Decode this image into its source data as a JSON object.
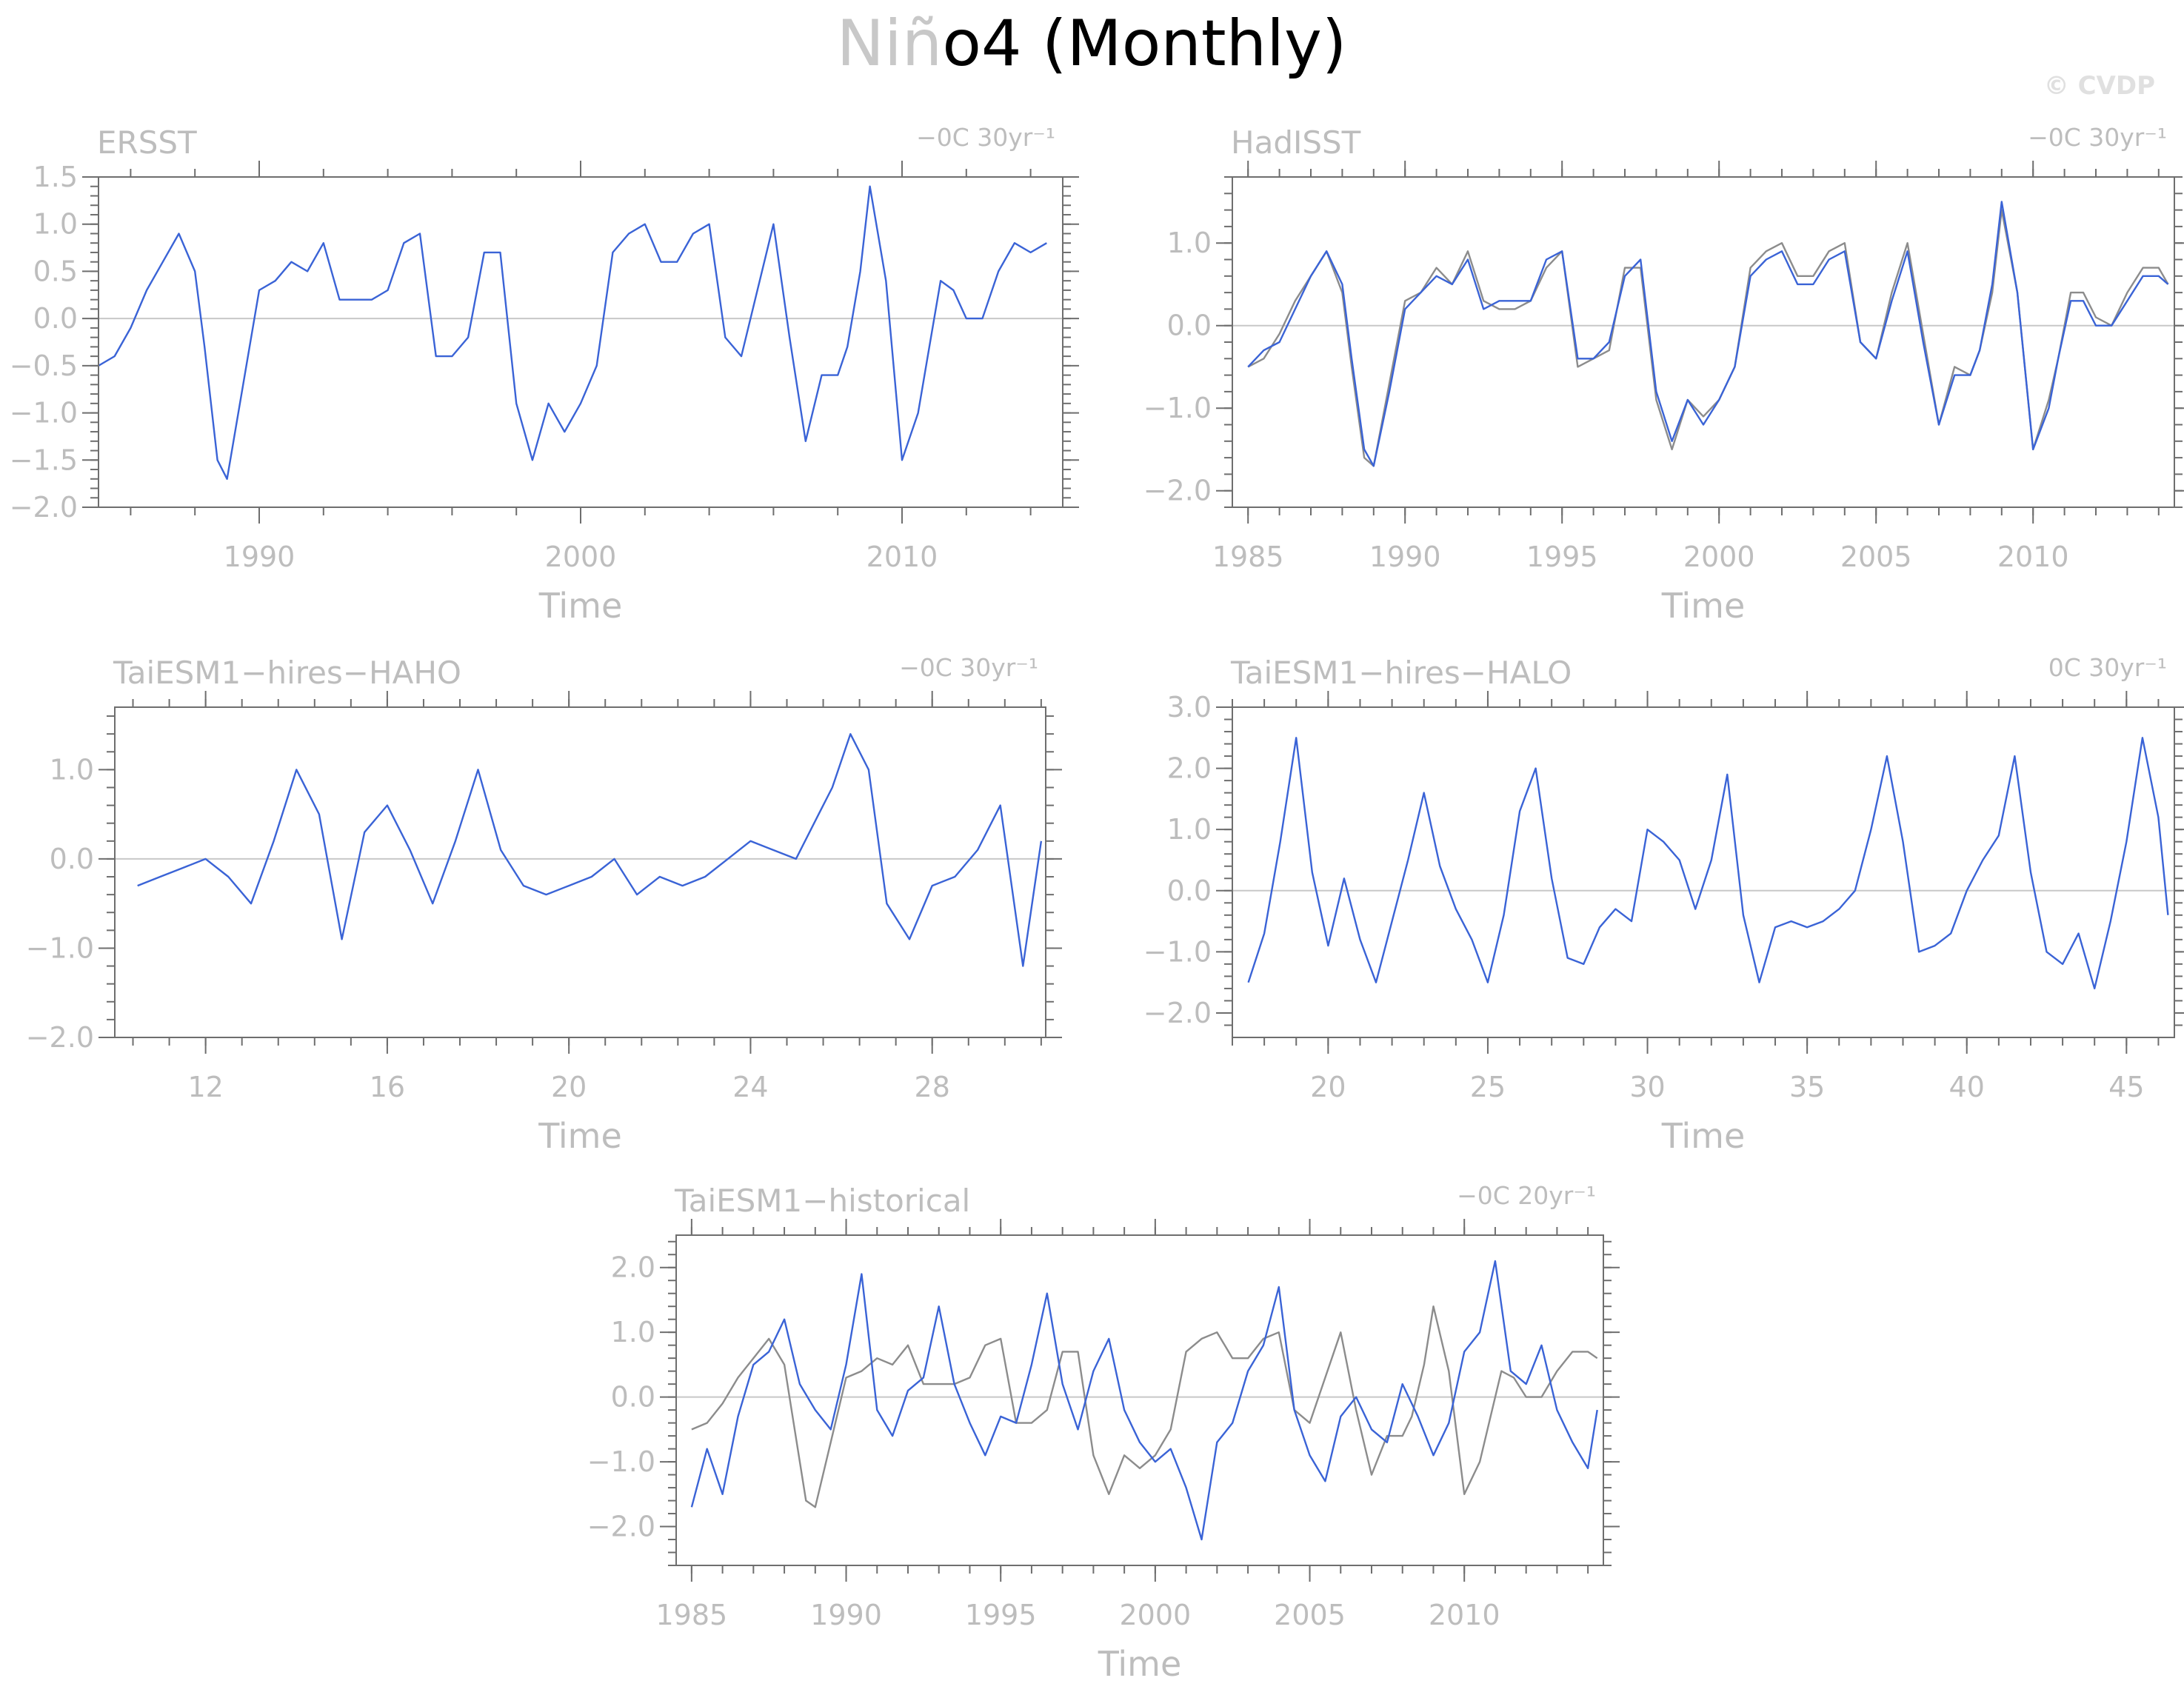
{
  "title": {
    "part_a": "Niñ",
    "part_b": "o4 (Monthly)"
  },
  "copyright": "© CVDP",
  "colors": {
    "model": "#3a63d6",
    "observed": "#8c8c8c",
    "text": "#bdbdbd",
    "frame": "#6e6e6e",
    "zero_line": "#c8c8c8"
  },
  "chart_data": [
    {
      "type": "line",
      "title": "ERSST",
      "trend_label": "−0C 30yr⁻¹",
      "xlabel": "Time",
      "xlim": [
        1985,
        2015
      ],
      "ylim": [
        -2.0,
        1.5
      ],
      "x_ticks": [
        1990,
        2000,
        2010
      ],
      "x_tick_labels": [
        "1990",
        "2000",
        "2010"
      ],
      "y_ticks": [
        -2.0,
        -1.5,
        -1.0,
        -0.5,
        0.0,
        0.5,
        1.0,
        1.5
      ],
      "y_tick_labels": [
        "−2.0",
        "−1.5",
        "−1.0",
        "−0.5",
        "0.0",
        "0.5",
        "1.0",
        "1.5"
      ],
      "series": [
        {
          "role": "model",
          "x": [
            1985,
            1985.5,
            1986,
            1986.5,
            1987,
            1987.5,
            1988,
            1988.3,
            1988.7,
            1989,
            1989.5,
            1990,
            1990.5,
            1991,
            1991.5,
            1992,
            1992.5,
            1993,
            1993.5,
            1994,
            1994.5,
            1995,
            1995.5,
            1996,
            1996.5,
            1997,
            1997.5,
            1998,
            1998.5,
            1999,
            1999.5,
            2000,
            2000.5,
            2001,
            2001.5,
            2002,
            2002.5,
            2003,
            2003.5,
            2004,
            2004.5,
            2005,
            2005.5,
            2006,
            2006.5,
            2007,
            2007.5,
            2008,
            2008.3,
            2008.7,
            2009,
            2009.5,
            2010,
            2010.5,
            2010.8,
            2011.2,
            2011.6,
            2012,
            2012.5,
            2013,
            2013.5,
            2014,
            2014.5
          ],
          "y": [
            -0.5,
            -0.4,
            -0.1,
            0.3,
            0.6,
            0.9,
            0.5,
            -0.3,
            -1.5,
            -1.7,
            -0.7,
            0.3,
            0.4,
            0.6,
            0.5,
            0.8,
            0.2,
            0.2,
            0.2,
            0.3,
            0.8,
            0.9,
            -0.4,
            -0.4,
            -0.2,
            0.7,
            0.7,
            -0.9,
            -1.5,
            -0.9,
            -1.2,
            -0.9,
            -0.5,
            0.7,
            0.9,
            1.0,
            0.6,
            0.6,
            0.9,
            1.0,
            -0.2,
            -0.4,
            0.3,
            1.0,
            -0.2,
            -1.3,
            -0.6,
            -0.6,
            -0.3,
            0.5,
            1.4,
            0.4,
            -1.5,
            -1.0,
            -0.4,
            0.4,
            0.3,
            0.0,
            0.0,
            0.5,
            0.8,
            0.7,
            0.8
          ]
        }
      ]
    },
    {
      "type": "line",
      "title": "HadISST",
      "trend_label": "−0C 30yr⁻¹",
      "xlabel": "Time",
      "xlim": [
        1984.5,
        2014.5
      ],
      "ylim": [
        -2.2,
        1.8
      ],
      "x_ticks": [
        1985,
        1990,
        1995,
        2000,
        2005,
        2010
      ],
      "x_tick_labels": [
        "1985",
        "1990",
        "1995",
        "2000",
        "2005",
        "2010"
      ],
      "y_ticks": [
        -2.0,
        -1.0,
        0.0,
        1.0
      ],
      "y_tick_labels": [
        "−2.0",
        "−1.0",
        "0.0",
        "1.0"
      ],
      "series": [
        {
          "role": "model",
          "x": [
            1985,
            1985.5,
            1986,
            1986.5,
            1987,
            1987.5,
            1988,
            1988.3,
            1988.7,
            1989,
            1989.5,
            1990,
            1990.5,
            1991,
            1991.5,
            1992,
            1992.5,
            1993,
            1993.5,
            1994,
            1994.5,
            1995,
            1995.5,
            1996,
            1996.5,
            1997,
            1997.5,
            1998,
            1998.5,
            1999,
            1999.5,
            2000,
            2000.5,
            2001,
            2001.5,
            2002,
            2002.5,
            2003,
            2003.5,
            2004,
            2004.5,
            2005,
            2005.5,
            2006,
            2006.5,
            2007,
            2007.5,
            2008,
            2008.3,
            2008.7,
            2009,
            2009.5,
            2010,
            2010.5,
            2010.8,
            2011.2,
            2011.6,
            2012,
            2012.5,
            2013,
            2013.5,
            2014,
            2014.3
          ],
          "y": [
            -0.5,
            -0.3,
            -0.2,
            0.2,
            0.6,
            0.9,
            0.5,
            -0.4,
            -1.5,
            -1.7,
            -0.8,
            0.2,
            0.4,
            0.6,
            0.5,
            0.8,
            0.2,
            0.3,
            0.3,
            0.3,
            0.8,
            0.9,
            -0.4,
            -0.4,
            -0.2,
            0.6,
            0.8,
            -0.8,
            -1.4,
            -0.9,
            -1.2,
            -0.9,
            -0.5,
            0.6,
            0.8,
            0.9,
            0.5,
            0.5,
            0.8,
            0.9,
            -0.2,
            -0.4,
            0.3,
            0.9,
            -0.2,
            -1.2,
            -0.6,
            -0.6,
            -0.3,
            0.5,
            1.5,
            0.4,
            -1.5,
            -1.0,
            -0.4,
            0.3,
            0.3,
            0.0,
            0.0,
            0.3,
            0.6,
            0.6,
            0.5
          ]
        },
        {
          "role": "observed",
          "x": [
            1985,
            1985.5,
            1986,
            1986.5,
            1987,
            1987.5,
            1988,
            1988.3,
            1988.7,
            1989,
            1989.5,
            1990,
            1990.5,
            1991,
            1991.5,
            1992,
            1992.5,
            1993,
            1993.5,
            1994,
            1994.5,
            1995,
            1995.5,
            1996,
            1996.5,
            1997,
            1997.5,
            1998,
            1998.5,
            1999,
            1999.5,
            2000,
            2000.5,
            2001,
            2001.5,
            2002,
            2002.5,
            2003,
            2003.5,
            2004,
            2004.5,
            2005,
            2005.5,
            2006,
            2006.5,
            2007,
            2007.5,
            2008,
            2008.3,
            2008.7,
            2009,
            2009.5,
            2010,
            2010.5,
            2010.8,
            2011.2,
            2011.6,
            2012,
            2012.5,
            2013,
            2013.5,
            2014,
            2014.3
          ],
          "y": [
            -0.5,
            -0.4,
            -0.1,
            0.3,
            0.6,
            0.9,
            0.4,
            -0.5,
            -1.6,
            -1.7,
            -0.7,
            0.3,
            0.4,
            0.7,
            0.5,
            0.9,
            0.3,
            0.2,
            0.2,
            0.3,
            0.7,
            0.9,
            -0.5,
            -0.4,
            -0.3,
            0.7,
            0.7,
            -0.9,
            -1.5,
            -0.9,
            -1.1,
            -0.9,
            -0.5,
            0.7,
            0.9,
            1.0,
            0.6,
            0.6,
            0.9,
            1.0,
            -0.2,
            -0.4,
            0.4,
            1.0,
            -0.1,
            -1.2,
            -0.5,
            -0.6,
            -0.3,
            0.4,
            1.4,
            0.4,
            -1.5,
            -0.9,
            -0.4,
            0.4,
            0.4,
            0.1,
            0.0,
            0.4,
            0.7,
            0.7,
            0.5
          ]
        }
      ]
    },
    {
      "type": "line",
      "title": "TaiESM1−hires−HAHO",
      "trend_label": "−0C 30yr⁻¹",
      "xlabel": "Time",
      "xlim": [
        10,
        30.5
      ],
      "ylim": [
        -2.0,
        1.7
      ],
      "x_ticks": [
        12,
        16,
        20,
        24,
        28
      ],
      "x_tick_labels": [
        "12",
        "16",
        "20",
        "24",
        "28"
      ],
      "y_ticks": [
        -2.0,
        -1.0,
        0.0,
        1.0
      ],
      "y_tick_labels": [
        "−2.0",
        "−1.0",
        "0.0",
        "1.0"
      ],
      "series": [
        {
          "role": "model",
          "x": [
            10.5,
            11,
            11.5,
            12,
            12.5,
            13,
            13.5,
            14,
            14.5,
            15,
            15.5,
            16,
            16.5,
            17,
            17.5,
            18,
            18.5,
            19,
            19.5,
            20,
            20.5,
            21,
            21.5,
            22,
            22.5,
            23,
            23.5,
            24,
            24.5,
            25,
            25.5,
            25.8,
            26.2,
            26.6,
            27,
            27.5,
            28,
            28.5,
            29,
            29.5,
            30,
            30.4
          ],
          "y": [
            -0.3,
            -0.2,
            -0.1,
            0.0,
            -0.2,
            -0.5,
            0.2,
            1.0,
            0.5,
            -0.9,
            0.3,
            0.6,
            0.1,
            -0.5,
            0.2,
            1.0,
            0.1,
            -0.3,
            -0.4,
            -0.3,
            -0.2,
            0.0,
            -0.4,
            -0.2,
            -0.3,
            -0.2,
            0.0,
            0.2,
            0.1,
            0.0,
            0.5,
            0.8,
            1.4,
            1.0,
            -0.5,
            -0.9,
            -0.3,
            -0.2,
            0.1,
            0.6,
            -1.2,
            0.2
          ]
        }
      ]
    },
    {
      "type": "line",
      "title": "TaiESM1−hires−HALO",
      "trend_label": "0C 30yr⁻¹",
      "xlabel": "Time",
      "xlim": [
        17,
        46.5
      ],
      "ylim": [
        -2.4,
        3.0
      ],
      "x_ticks": [
        20,
        25,
        30,
        35,
        40,
        45
      ],
      "x_tick_labels": [
        "20",
        "25",
        "30",
        "35",
        "40",
        "45"
      ],
      "y_ticks": [
        -2.0,
        -1.0,
        0.0,
        1.0,
        2.0,
        3.0
      ],
      "y_tick_labels": [
        "−2.0",
        "−1.0",
        "0.0",
        "1.0",
        "2.0",
        "3.0"
      ],
      "series": [
        {
          "role": "model",
          "x": [
            17.5,
            18,
            18.5,
            19,
            19.5,
            20,
            20.5,
            21,
            21.5,
            22,
            22.5,
            23,
            23.5,
            24,
            24.5,
            25,
            25.5,
            26,
            26.5,
            27,
            27.5,
            28,
            28.5,
            29,
            29.5,
            30,
            30.5,
            31,
            31.5,
            32,
            32.5,
            33,
            33.5,
            34,
            34.5,
            35,
            35.5,
            36,
            36.5,
            37,
            37.5,
            38,
            38.5,
            39,
            39.5,
            40,
            40.5,
            41,
            41.5,
            42,
            42.5,
            43,
            43.5,
            44,
            44.5,
            45,
            45.5,
            46,
            46.3
          ],
          "y": [
            -1.5,
            -0.7,
            0.8,
            2.5,
            0.3,
            -0.9,
            0.2,
            -0.8,
            -1.5,
            -0.5,
            0.5,
            1.6,
            0.4,
            -0.3,
            -0.8,
            -1.5,
            -0.4,
            1.3,
            2.0,
            0.2,
            -1.1,
            -1.2,
            -0.6,
            -0.3,
            -0.5,
            1.0,
            0.8,
            0.5,
            -0.3,
            0.5,
            1.9,
            -0.4,
            -1.5,
            -0.6,
            -0.5,
            -0.6,
            -0.5,
            -0.3,
            0.0,
            1.0,
            2.2,
            0.8,
            -1.0,
            -0.9,
            -0.7,
            0.0,
            0.5,
            0.9,
            2.2,
            0.3,
            -1.0,
            -1.2,
            -0.7,
            -1.6,
            -0.5,
            0.8,
            2.5,
            1.2,
            -0.4
          ]
        }
      ]
    },
    {
      "type": "line",
      "title": "TaiESM1−historical",
      "trend_label": "−0C 20yr⁻¹",
      "xlabel": "Time",
      "xlim": [
        1984.5,
        2014.5
      ],
      "ylim": [
        -2.6,
        2.5
      ],
      "x_ticks": [
        1985,
        1990,
        1995,
        2000,
        2005,
        2010
      ],
      "x_tick_labels": [
        "1985",
        "1990",
        "1995",
        "2000",
        "2005",
        "2010"
      ],
      "y_ticks": [
        -2.0,
        -1.0,
        0.0,
        1.0,
        2.0
      ],
      "y_tick_labels": [
        "−2.0",
        "−1.0",
        "0.0",
        "1.0",
        "2.0"
      ],
      "series": [
        {
          "role": "model",
          "x": [
            1985,
            1985.5,
            1986,
            1986.5,
            1987,
            1987.5,
            1988,
            1988.5,
            1989,
            1989.5,
            1990,
            1990.5,
            1991,
            1991.5,
            1992,
            1992.5,
            1993,
            1993.5,
            1994,
            1994.5,
            1995,
            1995.5,
            1996,
            1996.5,
            1997,
            1997.5,
            1998,
            1998.5,
            1999,
            1999.5,
            2000,
            2000.5,
            2001,
            2001.5,
            2002,
            2002.5,
            2003,
            2003.5,
            2004,
            2004.5,
            2005,
            2005.5,
            2006,
            2006.5,
            2007,
            2007.5,
            2008,
            2008.5,
            2009,
            2009.5,
            2010,
            2010.5,
            2011,
            2011.5,
            2012,
            2012.5,
            2013,
            2013.5,
            2014,
            2014.3
          ],
          "y": [
            -1.7,
            -0.8,
            -1.5,
            -0.3,
            0.5,
            0.7,
            1.2,
            0.2,
            -0.2,
            -0.5,
            0.5,
            1.9,
            -0.2,
            -0.6,
            0.1,
            0.3,
            1.4,
            0.2,
            -0.4,
            -0.9,
            -0.3,
            -0.4,
            0.5,
            1.6,
            0.2,
            -0.5,
            0.4,
            0.9,
            -0.2,
            -0.7,
            -1.0,
            -0.8,
            -1.4,
            -2.2,
            -0.7,
            -0.4,
            0.4,
            0.8,
            1.7,
            -0.2,
            -0.9,
            -1.3,
            -0.3,
            0.0,
            -0.5,
            -0.7,
            0.2,
            -0.3,
            -0.9,
            -0.4,
            0.7,
            1.0,
            2.1,
            0.4,
            0.2,
            0.8,
            -0.2,
            -0.7,
            -1.1,
            -0.2
          ]
        },
        {
          "role": "observed",
          "x": [
            1985,
            1985.5,
            1986,
            1986.5,
            1987,
            1987.5,
            1988,
            1988.3,
            1988.7,
            1989,
            1989.5,
            1990,
            1990.5,
            1991,
            1991.5,
            1992,
            1992.5,
            1993,
            1993.5,
            1994,
            1994.5,
            1995,
            1995.5,
            1996,
            1996.5,
            1997,
            1997.5,
            1998,
            1998.5,
            1999,
            1999.5,
            2000,
            2000.5,
            2001,
            2001.5,
            2002,
            2002.5,
            2003,
            2003.5,
            2004,
            2004.5,
            2005,
            2005.5,
            2006,
            2006.5,
            2007,
            2007.5,
            2008,
            2008.3,
            2008.7,
            2009,
            2009.5,
            2010,
            2010.5,
            2010.8,
            2011.2,
            2011.6,
            2012,
            2012.5,
            2013,
            2013.5,
            2014,
            2014.3
          ],
          "y": [
            -0.5,
            -0.4,
            -0.1,
            0.3,
            0.6,
            0.9,
            0.5,
            -0.4,
            -1.6,
            -1.7,
            -0.7,
            0.3,
            0.4,
            0.6,
            0.5,
            0.8,
            0.2,
            0.2,
            0.2,
            0.3,
            0.8,
            0.9,
            -0.4,
            -0.4,
            -0.2,
            0.7,
            0.7,
            -0.9,
            -1.5,
            -0.9,
            -1.1,
            -0.9,
            -0.5,
            0.7,
            0.9,
            1.0,
            0.6,
            0.6,
            0.9,
            1.0,
            -0.2,
            -0.4,
            0.3,
            1.0,
            -0.2,
            -1.2,
            -0.6,
            -0.6,
            -0.3,
            0.5,
            1.4,
            0.4,
            -1.5,
            -1.0,
            -0.4,
            0.4,
            0.3,
            0.0,
            0.0,
            0.4,
            0.7,
            0.7,
            0.6
          ]
        }
      ]
    }
  ]
}
